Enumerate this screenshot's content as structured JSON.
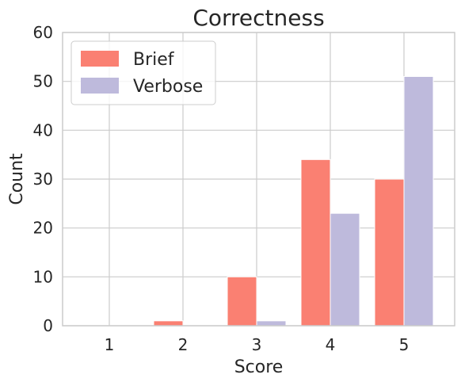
{
  "chart_data": {
    "type": "bar",
    "title": "Correctness",
    "xlabel": "Score",
    "ylabel": "Count",
    "categories": [
      "1",
      "2",
      "3",
      "4",
      "5"
    ],
    "ylim": [
      0,
      60
    ],
    "yticks": [
      0,
      10,
      20,
      30,
      40,
      50,
      60
    ],
    "grid": true,
    "legend_position": "top-left",
    "series": [
      {
        "name": "Brief",
        "values": [
          0,
          1,
          10,
          34,
          30
        ],
        "color": "#fa8072"
      },
      {
        "name": "Verbose",
        "values": [
          0,
          0,
          1,
          23,
          51
        ],
        "color": "#bebadc"
      }
    ]
  }
}
